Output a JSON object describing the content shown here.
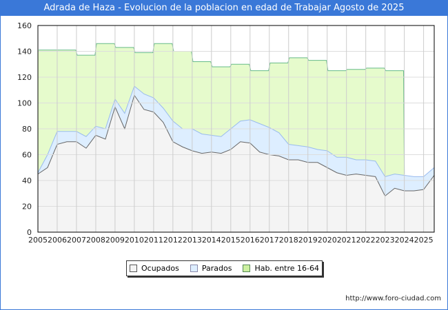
{
  "title": "Adrada de Haza - Evolucion de la poblacion en edad de Trabajar Agosto de 2025",
  "footer_url": "http://www.foro-ciudad.com",
  "chart_data": {
    "type": "area",
    "title": "Adrada de Haza - Evolucion de la poblacion en edad de Trabajar Agosto de 2025",
    "ylim": [
      0,
      160
    ],
    "xlim": [
      2005,
      2025.55
    ],
    "yticks": [
      "0",
      "20",
      "40",
      "60",
      "80",
      "100",
      "120",
      "140",
      "160"
    ],
    "xticks": [
      "2005",
      "2006",
      "2007",
      "2008",
      "2009",
      "2010",
      "2011",
      "2012",
      "2013",
      "2014",
      "2015",
      "2016",
      "2017",
      "2018",
      "2019",
      "2020",
      "2021",
      "2022",
      "2023",
      "2024",
      "2025"
    ],
    "legend": [
      "Ocupados",
      "Parados",
      "Hab. entre 16-64"
    ],
    "legend_position": "bottom",
    "grid": true,
    "colors": {
      "ocupados": "#f4f4f4",
      "ocupados_line": "#666666",
      "parados": "#ddeeff",
      "parados_line": "#99bbee",
      "hab": "#e6fbcc",
      "hab_line": "#66bb88"
    },
    "hab_years": [
      2005,
      2006,
      2007,
      2008,
      2009,
      2010,
      2011,
      2012,
      2013,
      2014,
      2015,
      2016,
      2017,
      2018,
      2019,
      2020,
      2021,
      2022,
      2023
    ],
    "hab_values": [
      141,
      141,
      137,
      146,
      143,
      139,
      146,
      140,
      132,
      128,
      130,
      125,
      131,
      135,
      133,
      125,
      126,
      127,
      125
    ],
    "x": [
      2005,
      2005.5,
      2006,
      2006.5,
      2007,
      2007.5,
      2008,
      2008.5,
      2009,
      2009.5,
      2010,
      2010.5,
      2011,
      2011.5,
      2012,
      2012.5,
      2013,
      2013.5,
      2014,
      2014.5,
      2015,
      2015.5,
      2016,
      2016.5,
      2017,
      2017.5,
      2018,
      2018.5,
      2019,
      2019.5,
      2020,
      2020.5,
      2021,
      2021.5,
      2022,
      2022.5,
      2023,
      2023.5,
      2024,
      2024.5,
      2025,
      2025.55
    ],
    "series": [
      {
        "name": "Ocupados",
        "values": [
          45,
          50,
          68,
          70,
          70,
          65,
          75,
          72,
          97,
          80,
          106,
          95,
          93,
          85,
          70,
          66,
          63,
          61,
          62,
          61,
          64,
          70,
          69,
          62,
          60,
          59,
          56,
          56,
          54,
          54,
          50,
          46,
          44,
          45,
          44,
          43,
          28,
          34,
          32,
          32,
          33,
          44
        ]
      },
      {
        "name": "Parados",
        "values": [
          1,
          10,
          10,
          8,
          8,
          9,
          7,
          8,
          6,
          12,
          7,
          12,
          11,
          11,
          16,
          14,
          17,
          15,
          13,
          13,
          16,
          16,
          18,
          22,
          21,
          18,
          12,
          11,
          12,
          10,
          13,
          12,
          14,
          11,
          12,
          12,
          15,
          11,
          12,
          11,
          10,
          6
        ]
      }
    ]
  }
}
